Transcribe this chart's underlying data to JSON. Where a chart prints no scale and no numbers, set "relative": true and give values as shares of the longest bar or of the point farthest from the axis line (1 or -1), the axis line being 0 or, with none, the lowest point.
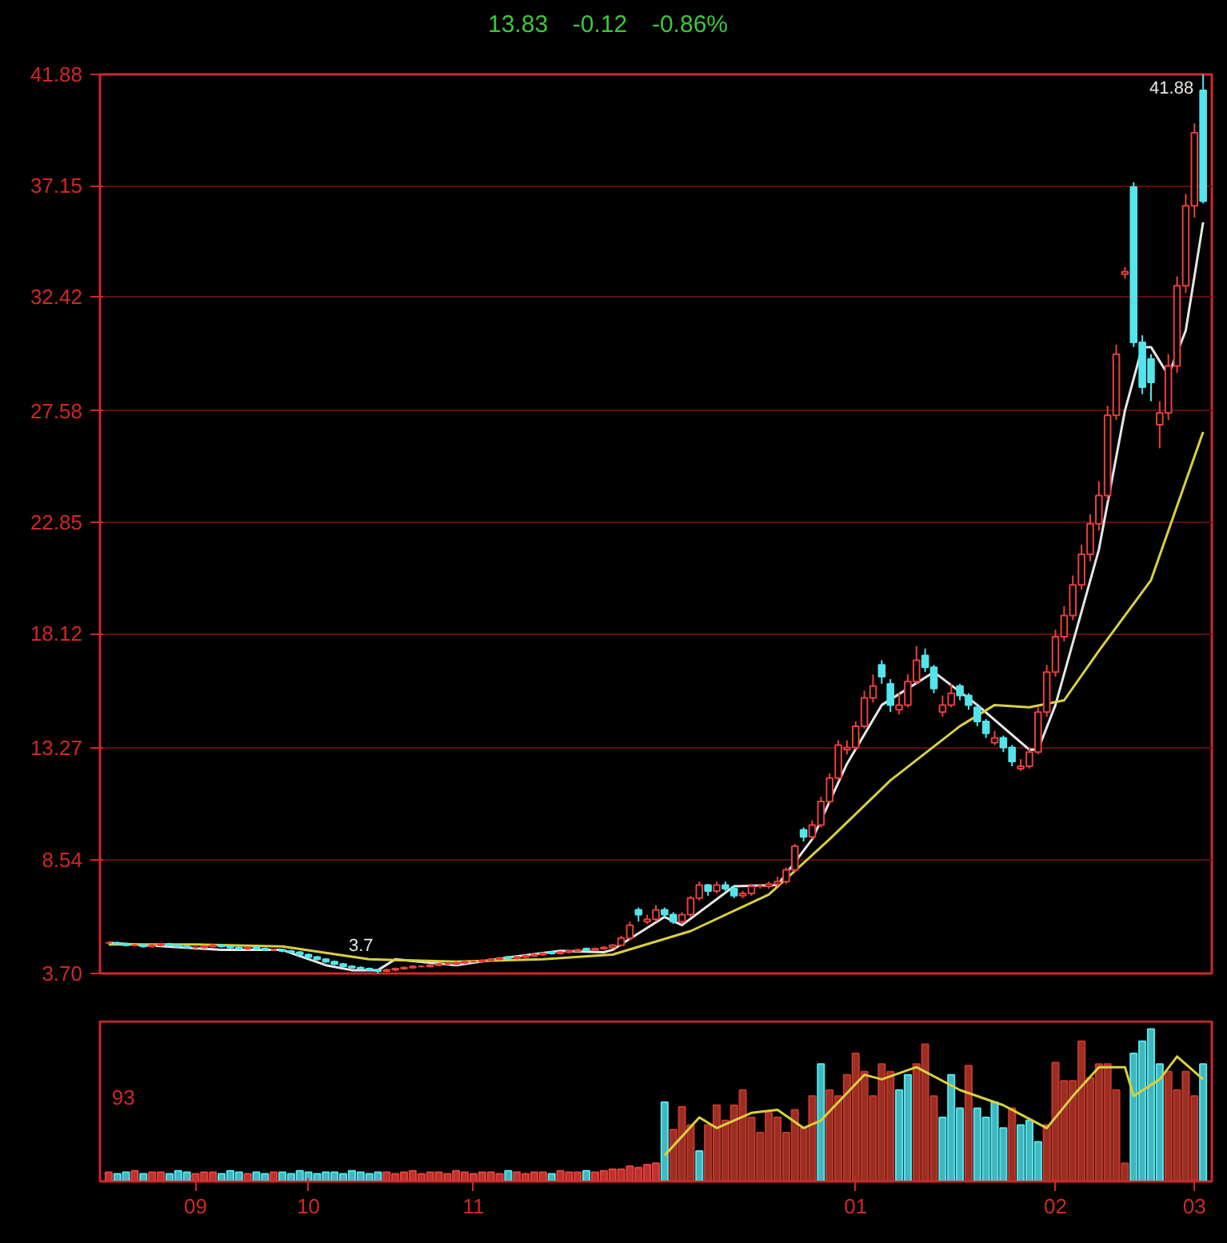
{
  "chart_data": [
    {
      "type": "candlestick",
      "annotations": [
        "13.83",
        "-0.12",
        "-0.86%",
        "41.88",
        "3.7"
      ],
      "categories": [
        null,
        null,
        null,
        null,
        null,
        null,
        null,
        null,
        null,
        null,
        "09",
        null,
        null,
        null,
        null,
        null,
        null,
        null,
        null,
        null,
        null,
        null,
        null,
        "10",
        null,
        null,
        null,
        null,
        null,
        null,
        null,
        null,
        null,
        null,
        null,
        null,
        null,
        null,
        null,
        null,
        null,
        null,
        "11",
        null,
        null,
        null,
        null,
        null,
        null,
        null,
        null,
        null,
        null,
        null,
        null,
        null,
        null,
        null,
        null,
        null,
        null,
        null,
        null,
        null,
        null,
        null,
        null,
        null,
        null,
        null,
        null,
        null,
        null,
        null,
        null,
        null,
        null,
        null,
        null,
        null,
        null,
        null,
        null,
        null,
        null,
        null,
        "01",
        null,
        null,
        null,
        null,
        null,
        null,
        null,
        null,
        null,
        null,
        null,
        null,
        null,
        null,
        null,
        null,
        null,
        null,
        null,
        null,
        null,
        null,
        "02",
        null,
        null,
        null,
        null,
        null,
        null,
        null,
        null,
        null,
        null,
        null,
        null,
        null,
        null,
        null,
        "03",
        null
      ],
      "ohlc": [
        [
          5.0,
          5.05,
          4.95,
          5.0
        ],
        [
          5.0,
          5.05,
          4.9,
          4.95
        ],
        [
          4.95,
          5.0,
          4.85,
          4.9
        ],
        [
          4.9,
          4.95,
          4.85,
          4.9
        ],
        [
          4.9,
          4.95,
          4.8,
          4.85
        ],
        [
          4.85,
          4.95,
          4.8,
          4.9
        ],
        [
          4.9,
          5.0,
          4.85,
          4.95
        ],
        [
          4.95,
          5.0,
          4.85,
          4.9
        ],
        [
          4.9,
          4.95,
          4.8,
          4.85
        ],
        [
          4.85,
          4.9,
          4.75,
          4.8
        ],
        [
          4.8,
          4.85,
          4.75,
          4.8
        ],
        [
          4.8,
          4.9,
          4.75,
          4.85
        ],
        [
          4.85,
          4.95,
          4.8,
          4.9
        ],
        [
          4.9,
          4.95,
          4.8,
          4.85
        ],
        [
          4.85,
          4.9,
          4.75,
          4.8
        ],
        [
          4.8,
          4.85,
          4.7,
          4.75
        ],
        [
          4.75,
          4.85,
          4.7,
          4.8
        ],
        [
          4.8,
          4.85,
          4.7,
          4.75
        ],
        [
          4.75,
          4.8,
          4.65,
          4.7
        ],
        [
          4.7,
          4.75,
          4.65,
          4.7
        ],
        [
          4.7,
          4.75,
          4.6,
          4.65
        ],
        [
          4.65,
          4.7,
          4.55,
          4.6
        ],
        [
          4.6,
          4.65,
          4.45,
          4.5
        ],
        [
          4.5,
          4.55,
          4.35,
          4.4
        ],
        [
          4.4,
          4.45,
          4.25,
          4.3
        ],
        [
          4.3,
          4.35,
          4.15,
          4.2
        ],
        [
          4.2,
          4.25,
          4.05,
          4.1
        ],
        [
          4.1,
          4.15,
          3.95,
          4.0
        ],
        [
          4.0,
          4.05,
          3.9,
          3.95
        ],
        [
          3.95,
          4.0,
          3.85,
          3.9
        ],
        [
          3.9,
          3.95,
          3.8,
          3.85
        ],
        [
          3.85,
          3.9,
          3.7,
          3.8
        ],
        [
          3.8,
          3.9,
          3.75,
          3.85
        ],
        [
          3.85,
          3.95,
          3.8,
          3.9
        ],
        [
          3.9,
          4.0,
          3.85,
          3.95
        ],
        [
          3.95,
          4.05,
          3.9,
          4.0
        ],
        [
          4.0,
          4.05,
          3.95,
          4.0
        ],
        [
          4.0,
          4.1,
          3.95,
          4.05
        ],
        [
          4.05,
          4.15,
          4.0,
          4.1
        ],
        [
          4.1,
          4.15,
          4.05,
          4.1
        ],
        [
          4.1,
          4.2,
          4.05,
          4.15
        ],
        [
          4.15,
          4.25,
          4.1,
          4.2
        ],
        [
          4.2,
          4.25,
          4.15,
          4.2
        ],
        [
          4.2,
          4.3,
          4.15,
          4.25
        ],
        [
          4.25,
          4.35,
          4.2,
          4.3
        ],
        [
          4.3,
          4.4,
          4.25,
          4.35
        ],
        [
          4.4,
          4.45,
          4.3,
          4.35
        ],
        [
          4.35,
          4.45,
          4.3,
          4.4
        ],
        [
          4.4,
          4.5,
          4.35,
          4.45
        ],
        [
          4.45,
          4.55,
          4.4,
          4.5
        ],
        [
          4.5,
          4.6,
          4.45,
          4.55
        ],
        [
          4.6,
          4.65,
          4.5,
          4.55
        ],
        [
          4.55,
          4.65,
          4.5,
          4.6
        ],
        [
          4.6,
          4.7,
          4.55,
          4.65
        ],
        [
          4.65,
          4.75,
          4.6,
          4.7
        ],
        [
          4.75,
          4.8,
          4.65,
          4.7
        ],
        [
          4.7,
          4.8,
          4.65,
          4.75
        ],
        [
          4.75,
          4.85,
          4.7,
          4.8
        ],
        [
          4.8,
          4.95,
          4.75,
          4.9
        ],
        [
          4.9,
          5.3,
          4.85,
          5.2
        ],
        [
          5.2,
          5.9,
          5.1,
          5.75
        ],
        [
          6.4,
          6.5,
          5.9,
          6.2
        ],
        [
          5.9,
          6.2,
          5.8,
          6.0
        ],
        [
          6.0,
          6.6,
          5.9,
          6.4
        ],
        [
          6.4,
          6.5,
          6.1,
          6.2
        ],
        [
          6.2,
          6.3,
          5.8,
          5.9
        ],
        [
          5.9,
          6.3,
          5.8,
          6.2
        ],
        [
          6.2,
          7.0,
          6.1,
          6.9
        ],
        [
          6.9,
          7.6,
          6.8,
          7.45
        ],
        [
          7.45,
          7.5,
          7.0,
          7.2
        ],
        [
          7.2,
          7.6,
          7.1,
          7.45
        ],
        [
          7.45,
          7.6,
          7.2,
          7.3
        ],
        [
          7.3,
          7.4,
          6.9,
          7.0
        ],
        [
          7.0,
          7.2,
          6.9,
          7.1
        ],
        [
          7.1,
          7.5,
          7.0,
          7.4
        ],
        [
          7.4,
          7.5,
          7.3,
          7.4
        ],
        [
          7.4,
          7.6,
          7.3,
          7.5
        ],
        [
          7.5,
          7.8,
          7.4,
          7.6
        ],
        [
          7.6,
          8.2,
          7.5,
          8.1
        ],
        [
          8.1,
          9.2,
          8.0,
          9.1
        ],
        [
          9.8,
          9.9,
          9.3,
          9.5
        ],
        [
          9.5,
          10.2,
          9.4,
          10.0
        ],
        [
          10.0,
          11.2,
          9.9,
          11.0
        ],
        [
          11.0,
          12.2,
          10.9,
          12.0
        ],
        [
          12.0,
          13.6,
          11.9,
          13.4
        ],
        [
          13.2,
          13.6,
          13.0,
          13.3
        ],
        [
          13.3,
          14.4,
          13.2,
          14.2
        ],
        [
          14.2,
          15.7,
          14.1,
          15.4
        ],
        [
          15.4,
          16.4,
          15.2,
          15.9
        ],
        [
          16.8,
          17.0,
          16.0,
          16.3
        ],
        [
          16.0,
          16.2,
          14.8,
          15.1
        ],
        [
          14.9,
          15.6,
          14.7,
          15.1
        ],
        [
          15.1,
          16.4,
          15.0,
          16.1
        ],
        [
          16.1,
          17.6,
          16.0,
          17.0
        ],
        [
          17.2,
          17.5,
          16.5,
          16.7
        ],
        [
          16.7,
          16.8,
          15.6,
          15.8
        ],
        [
          14.8,
          15.5,
          14.6,
          15.1
        ],
        [
          15.1,
          16.0,
          15.0,
          15.6
        ],
        [
          15.9,
          16.0,
          15.3,
          15.5
        ],
        [
          15.5,
          15.6,
          14.9,
          15.1
        ],
        [
          15.0,
          15.1,
          14.2,
          14.4
        ],
        [
          14.4,
          14.5,
          13.7,
          13.9
        ],
        [
          13.5,
          14.0,
          13.4,
          13.7
        ],
        [
          13.7,
          13.8,
          13.1,
          13.3
        ],
        [
          13.3,
          13.4,
          12.5,
          12.7
        ],
        [
          12.4,
          12.8,
          12.3,
          12.5
        ],
        [
          12.5,
          13.3,
          12.4,
          13.1
        ],
        [
          13.1,
          15.0,
          13.0,
          14.8
        ],
        [
          14.8,
          16.8,
          14.6,
          16.5
        ],
        [
          16.5,
          18.3,
          16.3,
          18.0
        ],
        [
          18.0,
          19.3,
          17.8,
          18.9
        ],
        [
          18.9,
          20.6,
          18.7,
          20.2
        ],
        [
          20.2,
          21.9,
          20.0,
          21.5
        ],
        [
          21.5,
          23.2,
          21.2,
          22.8
        ],
        [
          22.8,
          24.6,
          22.5,
          24.0
        ],
        [
          24.0,
          27.8,
          23.8,
          27.4
        ],
        [
          27.4,
          30.4,
          27.2,
          30.0
        ],
        [
          33.4,
          33.7,
          33.2,
          33.5
        ],
        [
          37.1,
          37.3,
          30.3,
          30.5
        ],
        [
          30.5,
          30.8,
          28.3,
          28.6
        ],
        [
          29.8,
          30.0,
          28.0,
          28.8
        ],
        [
          27.0,
          28.0,
          26.0,
          27.5
        ],
        [
          27.5,
          30.0,
          27.2,
          29.5
        ],
        [
          29.5,
          33.3,
          29.2,
          32.9
        ],
        [
          32.9,
          36.8,
          32.6,
          36.3
        ],
        [
          36.3,
          39.8,
          35.8,
          39.4
        ],
        [
          41.2,
          41.88,
          36.4,
          36.5
        ]
      ],
      "colors": [
        "#e8403c",
        "#54e4ec",
        "#54e4ec",
        "#e8403c",
        "#54e4ec",
        "#e8403c",
        "#e8403c",
        "#54e4ec",
        "#54e4ec",
        "#54e4ec",
        "#e8403c",
        "#e8403c",
        "#e8403c",
        "#54e4ec",
        "#54e4ec",
        "#54e4ec",
        "#e8403c",
        "#54e4ec",
        "#54e4ec",
        "#e8403c",
        "#54e4ec",
        "#54e4ec",
        "#54e4ec",
        "#54e4ec",
        "#54e4ec",
        "#54e4ec",
        "#54e4ec",
        "#54e4ec",
        "#54e4ec",
        "#54e4ec",
        "#54e4ec",
        "#54e4ec",
        "#e8403c",
        "#e8403c",
        "#e8403c",
        "#e8403c",
        "#e8403c",
        "#e8403c",
        "#e8403c",
        "#e8403c",
        "#e8403c",
        "#e8403c",
        "#e8403c",
        "#e8403c",
        "#e8403c",
        "#e8403c",
        "#54e4ec",
        "#e8403c",
        "#e8403c",
        "#e8403c",
        "#e8403c",
        "#54e4ec",
        "#e8403c",
        "#e8403c",
        "#e8403c",
        "#54e4ec",
        "#e8403c",
        "#e8403c",
        "#e8403c",
        "#e8403c",
        "#e8403c",
        "#54e4ec",
        "#e8403c",
        "#e8403c",
        "#54e4ec",
        "#54e4ec",
        "#e8403c",
        "#e8403c",
        "#e8403c",
        "#54e4ec",
        "#e8403c",
        "#54e4ec",
        "#54e4ec",
        "#e8403c",
        "#e8403c",
        "#e8403c",
        "#e8403c",
        "#e8403c",
        "#e8403c",
        "#e8403c",
        "#54e4ec",
        "#e8403c",
        "#e8403c",
        "#e8403c",
        "#e8403c",
        "#e8403c",
        "#e8403c",
        "#e8403c",
        "#e8403c",
        "#54e4ec",
        "#54e4ec",
        "#e8403c",
        "#e8403c",
        "#e8403c",
        "#54e4ec",
        "#54e4ec",
        "#e8403c",
        "#e8403c",
        "#54e4ec",
        "#54e4ec",
        "#54e4ec",
        "#54e4ec",
        "#e8403c",
        "#54e4ec",
        "#54e4ec",
        "#e8403c",
        "#e8403c",
        "#e8403c",
        "#e8403c",
        "#e8403c",
        "#e8403c",
        "#e8403c",
        "#e8403c",
        "#e8403c",
        "#e8403c",
        "#e8403c",
        "#e8403c",
        "#e8403c",
        "#54e4ec",
        "#54e4ec",
        "#54e4ec",
        "#e8403c",
        "#e8403c",
        "#e8403c",
        "#e8403c",
        "#e8403c",
        "#54e4ec"
      ],
      "series": [
        {
          "type": "line",
          "color": "#e6e6e6",
          "values": [
            5.0,
            null,
            null,
            null,
            null,
            null,
            null,
            null,
            null,
            null,
            null,
            null,
            null,
            4.7,
            null,
            null,
            null,
            null,
            null,
            null,
            4.7,
            null,
            null,
            null,
            null,
            4.05,
            null,
            null,
            3.84,
            null,
            null,
            3.84,
            null,
            4.3,
            null,
            null,
            null,
            null,
            null,
            null,
            4.05,
            null,
            null,
            null,
            null,
            null,
            4.38,
            null,
            null,
            null,
            null,
            null,
            4.66,
            null,
            null,
            null,
            null,
            4.6,
            4.7,
            null,
            null,
            null,
            null,
            null,
            6.1,
            null,
            5.75,
            null,
            null,
            null,
            null,
            null,
            7.4,
            null,
            null,
            null,
            null,
            7.45,
            null,
            null,
            null,
            9.4,
            null,
            null,
            null,
            12.6,
            null,
            null,
            null,
            15.1,
            null,
            null,
            null,
            null,
            null,
            16.5,
            null,
            null,
            null,
            null,
            15.1,
            null,
            null,
            null,
            null,
            null,
            13.2,
            13.2,
            null,
            15.1,
            null,
            null,
            null,
            null,
            21.7,
            null,
            null,
            27.6,
            null,
            30.3,
            30.3,
            null,
            29.1,
            null,
            31.0,
            null,
            35.6
          ]
        },
        {
          "type": "line",
          "color": "#d8d040",
          "values": [
            4.93,
            null,
            null,
            null,
            null,
            null,
            null,
            null,
            null,
            null,
            4.93,
            null,
            null,
            null,
            null,
            null,
            null,
            null,
            null,
            null,
            4.85,
            null,
            null,
            null,
            null,
            null,
            null,
            null,
            null,
            null,
            4.3,
            null,
            null,
            null,
            null,
            null,
            null,
            null,
            null,
            null,
            4.2,
            null,
            null,
            null,
            null,
            null,
            null,
            null,
            null,
            null,
            4.3,
            null,
            null,
            null,
            null,
            null,
            null,
            null,
            4.5,
            null,
            null,
            null,
            null,
            null,
            null,
            null,
            null,
            5.5,
            null,
            null,
            null,
            null,
            null,
            null,
            null,
            null,
            7.05,
            null,
            null,
            null,
            null,
            null,
            null,
            9.4,
            null,
            null,
            null,
            null,
            null,
            null,
            11.9,
            null,
            null,
            null,
            null,
            null,
            null,
            null,
            14.2,
            null,
            null,
            null,
            15.1,
            null,
            null,
            null,
            15.0,
            null,
            null,
            null,
            15.3,
            null,
            null,
            null,
            17.4,
            null,
            null,
            null,
            null,
            null,
            20.4,
            null,
            null,
            null,
            null,
            null,
            26.7
          ]
        }
      ],
      "ylim": [
        3.7,
        41.88
      ],
      "yticks": [
        {
          "value": 3.7,
          "label": "3.70"
        },
        8.54,
        13.27,
        18.12,
        22.85,
        27.58,
        32.42,
        37.15,
        41.88
      ],
      "grid": "y",
      "tick_labels": "y"
    },
    {
      "type": "bar",
      "relative": true,
      "annotations": [
        "93"
      ],
      "categories": [
        null,
        null,
        null,
        null,
        null,
        null,
        null,
        null,
        null,
        null,
        "09",
        null,
        null,
        null,
        null,
        null,
        null,
        null,
        null,
        null,
        null,
        null,
        null,
        "10",
        null,
        null,
        null,
        null,
        null,
        null,
        null,
        null,
        null,
        null,
        null,
        null,
        null,
        null,
        null,
        null,
        null,
        null,
        "11",
        null,
        null,
        null,
        null,
        null,
        null,
        null,
        null,
        null,
        null,
        null,
        null,
        null,
        null,
        null,
        null,
        null,
        null,
        null,
        null,
        null,
        null,
        null,
        null,
        null,
        null,
        null,
        null,
        null,
        null,
        null,
        null,
        null,
        null,
        null,
        null,
        null,
        null,
        null,
        null,
        null,
        null,
        null,
        "01",
        null,
        null,
        null,
        null,
        null,
        null,
        null,
        null,
        null,
        null,
        null,
        null,
        null,
        null,
        null,
        null,
        null,
        null,
        null,
        null,
        null,
        null,
        "02",
        null,
        null,
        null,
        null,
        null,
        null,
        null,
        null,
        null,
        null,
        null,
        null,
        null,
        null,
        null,
        "03",
        null
      ],
      "series": [
        {
          "type": "bar",
          "values": [
            0.06,
            0.05,
            0.06,
            0.07,
            0.05,
            0.06,
            0.06,
            0.05,
            0.07,
            0.06,
            0.05,
            0.06,
            0.06,
            0.05,
            0.07,
            0.06,
            0.05,
            0.06,
            0.05,
            0.06,
            0.06,
            0.05,
            0.07,
            0.06,
            0.05,
            0.06,
            0.06,
            0.05,
            0.07,
            0.06,
            0.05,
            0.06,
            0.06,
            0.05,
            0.06,
            0.07,
            0.05,
            0.06,
            0.06,
            0.05,
            0.07,
            0.06,
            0.05,
            0.06,
            0.06,
            0.05,
            0.07,
            0.06,
            0.05,
            0.06,
            0.06,
            0.05,
            0.07,
            0.06,
            0.06,
            0.07,
            0.06,
            0.07,
            0.08,
            0.08,
            0.1,
            0.09,
            0.11,
            0.12,
            0.52,
            0.34,
            0.49,
            0.37,
            0.2,
            0.37,
            0.5,
            0.4,
            0.5,
            0.6,
            0.42,
            0.32,
            0.45,
            0.42,
            0.32,
            0.47,
            0.35,
            0.56,
            0.77,
            0.6,
            0.56,
            0.7,
            0.84,
            0.72,
            0.56,
            0.77,
            0.72,
            0.6,
            0.7,
            0.77,
            0.9,
            0.56,
            0.42,
            0.7,
            0.48,
            0.76,
            0.48,
            0.42,
            0.52,
            0.35,
            0.48,
            0.37,
            0.4,
            0.26,
            0.37,
            0.78,
            0.66,
            0.66,
            0.92,
            0.68,
            0.77,
            0.77,
            0.6,
            0.12,
            0.84,
            0.92,
            1.0,
            0.77,
            0.72,
            0.6,
            0.72,
            0.56,
            0.77
          ],
          "colors": [
            "#e8403c",
            "#54e4ec",
            "#54e4ec",
            "#e8403c",
            "#54e4ec",
            "#e8403c",
            "#e8403c",
            "#54e4ec",
            "#54e4ec",
            "#54e4ec",
            "#e8403c",
            "#e8403c",
            "#e8403c",
            "#54e4ec",
            "#54e4ec",
            "#54e4ec",
            "#e8403c",
            "#54e4ec",
            "#54e4ec",
            "#e8403c",
            "#54e4ec",
            "#54e4ec",
            "#54e4ec",
            "#54e4ec",
            "#54e4ec",
            "#54e4ec",
            "#54e4ec",
            "#54e4ec",
            "#54e4ec",
            "#54e4ec",
            "#54e4ec",
            "#54e4ec",
            "#e8403c",
            "#e8403c",
            "#e8403c",
            "#e8403c",
            "#e8403c",
            "#e8403c",
            "#e8403c",
            "#e8403c",
            "#e8403c",
            "#e8403c",
            "#e8403c",
            "#e8403c",
            "#e8403c",
            "#e8403c",
            "#54e4ec",
            "#e8403c",
            "#e8403c",
            "#e8403c",
            "#e8403c",
            "#54e4ec",
            "#e8403c",
            "#e8403c",
            "#e8403c",
            "#54e4ec",
            "#e8403c",
            "#e8403c",
            "#e8403c",
            "#e8403c",
            "#e8403c",
            "#e8403c",
            "#e8403c",
            "#e8403c",
            "#54e4ec",
            "#c0392b",
            "#c0392b",
            "#c0392b",
            "#54e4ec",
            "#c0392b",
            "#c0392b",
            "#c0392b",
            "#c0392b",
            "#c0392b",
            "#c0392b",
            "#c0392b",
            "#c0392b",
            "#c0392b",
            "#c0392b",
            "#c0392b",
            "#c0392b",
            "#c0392b",
            "#54e4ec",
            "#c0392b",
            "#c0392b",
            "#c0392b",
            "#c0392b",
            "#c0392b",
            "#c0392b",
            "#c0392b",
            "#c0392b",
            "#54e4ec",
            "#54e4ec",
            "#c0392b",
            "#c0392b",
            "#c0392b",
            "#54e4ec",
            "#54e4ec",
            "#54e4ec",
            "#c0392b",
            "#54e4ec",
            "#54e4ec",
            "#54e4ec",
            "#54e4ec",
            "#c0392b",
            "#54e4ec",
            "#54e4ec",
            "#54e4ec",
            "#c0392b",
            "#c0392b",
            "#c0392b",
            "#c0392b",
            "#c0392b",
            "#c0392b",
            "#c0392b",
            "#c0392b",
            "#c0392b",
            "#c0392b",
            "#54e4ec",
            "#54e4ec",
            "#54e4ec",
            "#54e4ec",
            "#c0392b",
            "#c0392b",
            "#c0392b",
            "#c0392b",
            "#54e4ec"
          ]
        },
        {
          "type": "line",
          "color": "#d8d040",
          "values": [
            null,
            null,
            null,
            null,
            null,
            null,
            null,
            null,
            null,
            null,
            null,
            null,
            null,
            null,
            null,
            null,
            null,
            null,
            null,
            null,
            null,
            null,
            null,
            null,
            null,
            null,
            null,
            null,
            null,
            null,
            null,
            null,
            null,
            null,
            null,
            null,
            null,
            null,
            null,
            null,
            null,
            null,
            null,
            null,
            null,
            null,
            null,
            null,
            null,
            null,
            null,
            null,
            null,
            null,
            null,
            null,
            null,
            null,
            null,
            null,
            null,
            null,
            null,
            null,
            0.17,
            null,
            null,
            null,
            0.42,
            null,
            0.35,
            null,
            null,
            null,
            0.45,
            null,
            null,
            0.47,
            null,
            null,
            0.35,
            null,
            0.4,
            null,
            null,
            null,
            null,
            0.7,
            null,
            0.67,
            null,
            null,
            null,
            0.75,
            null,
            null,
            null,
            null,
            0.6,
            null,
            null,
            null,
            null,
            0.5,
            null,
            null,
            null,
            null,
            0.35,
            null,
            null,
            0.56,
            null,
            null,
            0.75,
            null,
            null,
            0.75,
            0.56,
            null,
            null,
            0.67,
            null,
            0.82,
            null,
            null,
            0.67
          ]
        }
      ],
      "tick_labels": "x"
    }
  ]
}
